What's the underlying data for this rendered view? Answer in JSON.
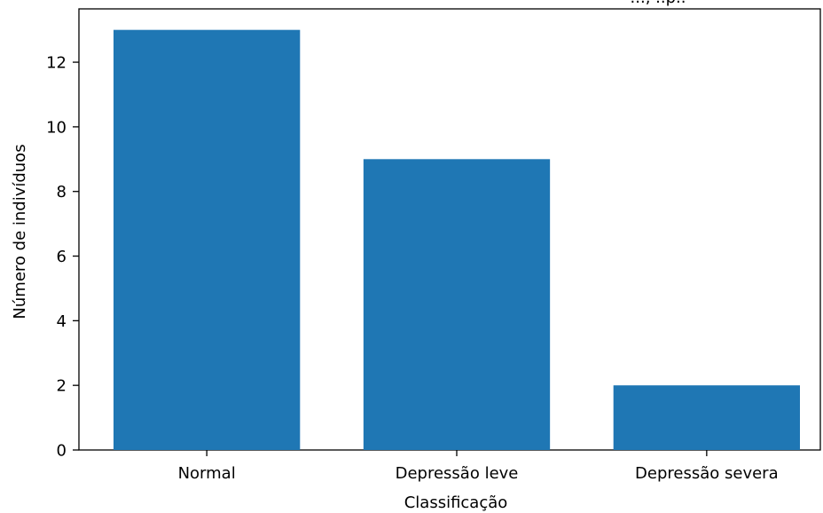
{
  "chart_data": {
    "type": "bar",
    "title": "..., ..p..",
    "xlabel": "Classificação",
    "ylabel": "Número de indivíduos",
    "categories": [
      "Normal",
      "Depressão leve",
      "Depressão severa"
    ],
    "values": [
      13,
      9,
      2
    ],
    "yticks": [
      "0",
      "2",
      "4",
      "6",
      "8",
      "10",
      "12"
    ],
    "ylim": [
      0,
      13.65
    ],
    "bar_color": "#1f77b4",
    "grid": false,
    "legend": "none"
  }
}
